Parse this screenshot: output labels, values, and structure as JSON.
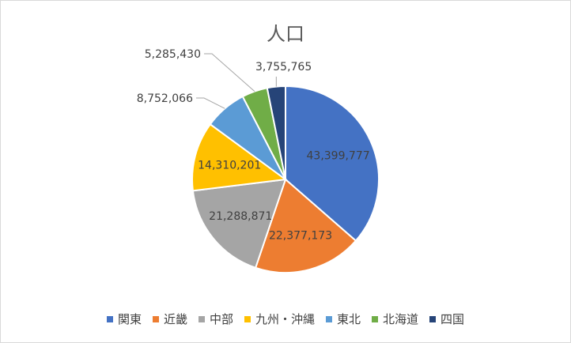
{
  "chart_data": {
    "type": "pie",
    "title": "人口",
    "categories": [
      "関東",
      "近畿",
      "中部",
      "九州・沖縄",
      "東北",
      "北海道",
      "四国"
    ],
    "values": [
      43399777,
      22377173,
      21288871,
      14310201,
      8752066,
      5285430,
      3755765
    ],
    "data_labels": [
      "43,399,777",
      "22,377,173",
      "21,288,871",
      "14,310,201",
      "8,752,066",
      "5,285,430",
      "3,755,765"
    ],
    "colors": [
      "#4472c4",
      "#ed7d31",
      "#a5a5a5",
      "#ffc000",
      "#5b9bd5",
      "#70ad47",
      "#264478"
    ],
    "legend_position": "bottom"
  }
}
